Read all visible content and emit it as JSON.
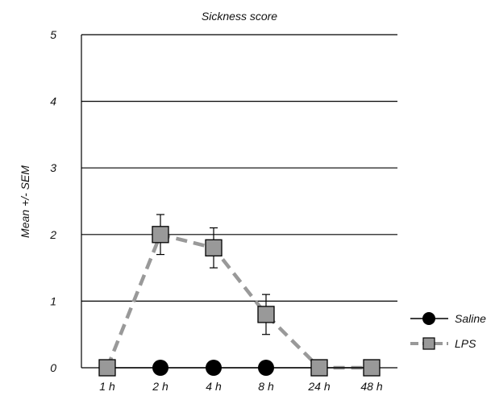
{
  "chart_data": {
    "type": "line",
    "title": "Sickness score",
    "xlabel": "",
    "ylabel": "Mean +/- SEM",
    "categories": [
      "1 h",
      "2 h",
      "4 h",
      "8 h",
      "24 h",
      "48 h"
    ],
    "ylim": [
      0,
      5
    ],
    "yticks": [
      "0",
      "1",
      "2",
      "3",
      "4",
      "5"
    ],
    "grid": "horizontal",
    "legend_position": "right",
    "series": [
      {
        "name": "Saline",
        "values": [
          0,
          0,
          0,
          0,
          0,
          0
        ],
        "error": [
          0,
          0,
          0,
          0,
          0,
          0
        ],
        "marker": "circle",
        "line": "solid",
        "color": "#000000"
      },
      {
        "name": "LPS",
        "values": [
          0,
          2.0,
          1.8,
          0.8,
          0,
          0
        ],
        "error": [
          0,
          0.3,
          0.3,
          0.3,
          0,
          0
        ],
        "marker": "square",
        "line": "dashed",
        "color": "#999999"
      }
    ]
  }
}
